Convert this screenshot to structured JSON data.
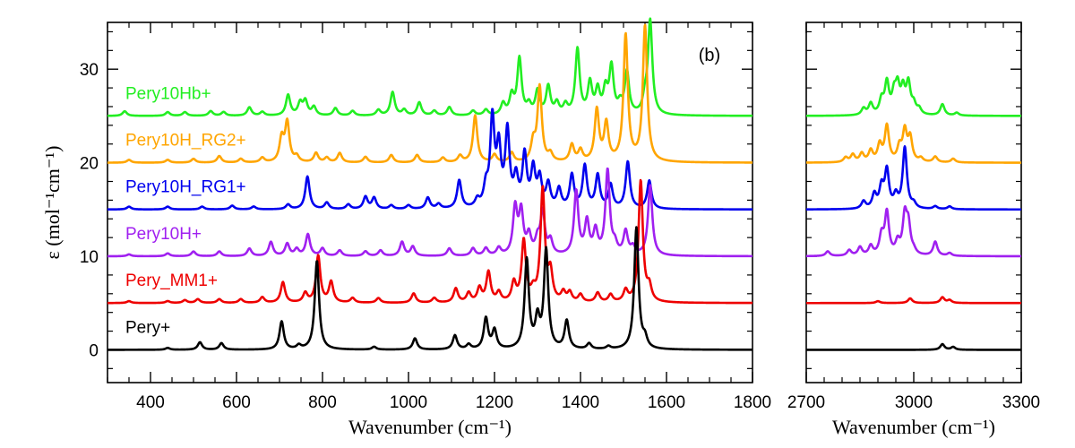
{
  "chart_data": {
    "type": "line",
    "panel_label": "(b)",
    "ylabel": "ε (mol⁻¹cm⁻¹)",
    "panels": [
      {
        "xlabel": "Wavenumber (cm⁻¹)",
        "xlim": [
          300,
          1800
        ],
        "xticks": [
          "400",
          "600",
          "800",
          "1000",
          "1200",
          "1400",
          "1600",
          "1800"
        ],
        "xtick_values": [
          400,
          600,
          800,
          1000,
          1200,
          1400,
          1600,
          1800
        ]
      },
      {
        "xlabel": "Wavenumber (cm⁻¹)",
        "xlim": [
          2700,
          3300
        ],
        "xticks": [
          "2700",
          "3000",
          "3300"
        ],
        "xtick_values": [
          2700,
          3000,
          3300
        ]
      }
    ],
    "ylim": [
      -3.5,
      35
    ],
    "yticks": [
      "0",
      "10",
      "20",
      "30"
    ],
    "ytick_values": [
      0,
      10,
      20,
      30
    ],
    "series": [
      {
        "name": "Pery10Hb+",
        "color": "#22ee22",
        "offset": 25,
        "peaks": [
          [
            340,
            0.5
          ],
          [
            440,
            0.4
          ],
          [
            480,
            0.4
          ],
          [
            540,
            0.5
          ],
          [
            570,
            0.4
          ],
          [
            630,
            0.9
          ],
          [
            660,
            0.4
          ],
          [
            720,
            2.2
          ],
          [
            748,
            1.3
          ],
          [
            760,
            1.5
          ],
          [
            780,
            0.9
          ],
          [
            830,
            0.8
          ],
          [
            870,
            0.5
          ],
          [
            930,
            0.6
          ],
          [
            963,
            2.5
          ],
          [
            990,
            0.6
          ],
          [
            1025,
            1.4
          ],
          [
            1060,
            0.5
          ],
          [
            1095,
            0.9
          ],
          [
            1150,
            0.5
          ],
          [
            1180,
            0.6
          ],
          [
            1220,
            1.2
          ],
          [
            1240,
            2.0
          ],
          [
            1258,
            6.0
          ],
          [
            1280,
            1.0
          ],
          [
            1300,
            2.5
          ],
          [
            1325,
            3.0
          ],
          [
            1345,
            1.2
          ],
          [
            1365,
            1.0
          ],
          [
            1393,
            7.0
          ],
          [
            1422,
            3.3
          ],
          [
            1440,
            2.5
          ],
          [
            1458,
            2.5
          ],
          [
            1472,
            5.0
          ],
          [
            1492,
            1.0
          ],
          [
            1508,
            4.5
          ],
          [
            1550,
            1.5
          ],
          [
            1562,
            10.0
          ],
          [
            2860,
            0.7
          ],
          [
            2880,
            1.2
          ],
          [
            2910,
            1.5
          ],
          [
            2925,
            3.3
          ],
          [
            2945,
            2.0
          ],
          [
            2955,
            2.7
          ],
          [
            2970,
            2.5
          ],
          [
            2985,
            3.2
          ],
          [
            3000,
            1.0
          ],
          [
            3015,
            0.6
          ],
          [
            3080,
            1.2
          ],
          [
            3120,
            0.3
          ]
        ]
      },
      {
        "name": "Pery10H_RG2+",
        "color": "#ffa500",
        "offset": 20,
        "peaks": [
          [
            350,
            0.3
          ],
          [
            440,
            0.3
          ],
          [
            500,
            0.4
          ],
          [
            560,
            0.7
          ],
          [
            610,
            0.4
          ],
          [
            660,
            0.5
          ],
          [
            705,
            2.5
          ],
          [
            718,
            4.2
          ],
          [
            740,
            0.6
          ],
          [
            785,
            1.0
          ],
          [
            810,
            0.5
          ],
          [
            840,
            1.0
          ],
          [
            900,
            0.6
          ],
          [
            960,
            0.8
          ],
          [
            1020,
            0.8
          ],
          [
            1080,
            0.5
          ],
          [
            1120,
            0.7
          ],
          [
            1155,
            5.0
          ],
          [
            1200,
            0.8
          ],
          [
            1240,
            1.0
          ],
          [
            1290,
            2.0
          ],
          [
            1305,
            8.0
          ],
          [
            1330,
            0.8
          ],
          [
            1380,
            1.8
          ],
          [
            1400,
            1.2
          ],
          [
            1438,
            5.5
          ],
          [
            1460,
            4.0
          ],
          [
            1505,
            13.5
          ],
          [
            1550,
            14.5
          ],
          [
            2810,
            0.5
          ],
          [
            2830,
            0.8
          ],
          [
            2855,
            0.9
          ],
          [
            2880,
            1.2
          ],
          [
            2905,
            1.8
          ],
          [
            2925,
            3.8
          ],
          [
            2960,
            1.5
          ],
          [
            2975,
            3.2
          ],
          [
            2990,
            2.5
          ],
          [
            3020,
            0.4
          ],
          [
            3060,
            0.6
          ],
          [
            3110,
            0.4
          ]
        ]
      },
      {
        "name": "Pery10H_RG1+",
        "color": "#0000ee",
        "offset": 15,
        "peaks": [
          [
            350,
            0.3
          ],
          [
            440,
            0.3
          ],
          [
            520,
            0.3
          ],
          [
            590,
            0.4
          ],
          [
            640,
            0.3
          ],
          [
            720,
            0.5
          ],
          [
            765,
            3.5
          ],
          [
            810,
            0.7
          ],
          [
            860,
            0.5
          ],
          [
            900,
            1.3
          ],
          [
            920,
            1.2
          ],
          [
            960,
            0.4
          ],
          [
            1000,
            0.4
          ],
          [
            1045,
            1.2
          ],
          [
            1070,
            0.5
          ],
          [
            1118,
            3.0
          ],
          [
            1160,
            0.8
          ],
          [
            1180,
            2.0
          ],
          [
            1195,
            9.3
          ],
          [
            1210,
            6.0
          ],
          [
            1230,
            8.0
          ],
          [
            1250,
            3.0
          ],
          [
            1270,
            5.5
          ],
          [
            1290,
            4.0
          ],
          [
            1305,
            3.0
          ],
          [
            1325,
            2.5
          ],
          [
            1350,
            2.0
          ],
          [
            1380,
            3.5
          ],
          [
            1410,
            4.5
          ],
          [
            1440,
            3.5
          ],
          [
            1470,
            2.5
          ],
          [
            1510,
            5.0
          ],
          [
            1560,
            3.0
          ],
          [
            2860,
            0.8
          ],
          [
            2890,
            1.5
          ],
          [
            2910,
            2.2
          ],
          [
            2925,
            4.0
          ],
          [
            2950,
            1.3
          ],
          [
            2975,
            6.5
          ],
          [
            3000,
            0.5
          ],
          [
            3060,
            0.3
          ],
          [
            3100,
            0.3
          ]
        ]
      },
      {
        "name": "Pery10H+",
        "color": "#a020f0",
        "offset": 10,
        "peaks": [
          [
            350,
            0.2
          ],
          [
            440,
            0.3
          ],
          [
            500,
            0.5
          ],
          [
            560,
            0.5
          ],
          [
            630,
            0.8
          ],
          [
            680,
            1.5
          ],
          [
            718,
            1.3
          ],
          [
            740,
            0.7
          ],
          [
            766,
            2.3
          ],
          [
            800,
            0.8
          ],
          [
            840,
            0.6
          ],
          [
            900,
            0.5
          ],
          [
            935,
            0.6
          ],
          [
            985,
            1.5
          ],
          [
            1010,
            1.0
          ],
          [
            1095,
            0.8
          ],
          [
            1150,
            0.8
          ],
          [
            1180,
            0.8
          ],
          [
            1210,
            0.8
          ],
          [
            1248,
            5.0
          ],
          [
            1262,
            4.5
          ],
          [
            1280,
            2.0
          ],
          [
            1300,
            1.5
          ],
          [
            1312,
            4.5
          ],
          [
            1330,
            1.5
          ],
          [
            1390,
            6.8
          ],
          [
            1415,
            3.5
          ],
          [
            1435,
            2.5
          ],
          [
            1463,
            9.0
          ],
          [
            1480,
            1.0
          ],
          [
            1505,
            2.5
          ],
          [
            1522,
            0.8
          ],
          [
            1562,
            7.5
          ],
          [
            2760,
            0.5
          ],
          [
            2820,
            0.6
          ],
          [
            2850,
            0.9
          ],
          [
            2880,
            1.0
          ],
          [
            2910,
            2.0
          ],
          [
            2925,
            4.5
          ],
          [
            2955,
            1.3
          ],
          [
            2975,
            4.0
          ],
          [
            2985,
            3.0
          ],
          [
            3000,
            0.4
          ],
          [
            3060,
            1.5
          ],
          [
            3100,
            0.3
          ]
        ]
      },
      {
        "name": "Pery_MM1+",
        "color": "#ee0000",
        "offset": 5,
        "peaks": [
          [
            350,
            0.2
          ],
          [
            440,
            0.2
          ],
          [
            480,
            0.3
          ],
          [
            510,
            0.4
          ],
          [
            560,
            0.4
          ],
          [
            610,
            0.4
          ],
          [
            660,
            0.6
          ],
          [
            708,
            2.2
          ],
          [
            760,
            1.0
          ],
          [
            790,
            5.0
          ],
          [
            820,
            2.2
          ],
          [
            870,
            0.5
          ],
          [
            930,
            0.5
          ],
          [
            1012,
            1.0
          ],
          [
            1060,
            0.5
          ],
          [
            1110,
            1.5
          ],
          [
            1140,
            1.0
          ],
          [
            1165,
            1.5
          ],
          [
            1186,
            3.2
          ],
          [
            1210,
            1.0
          ],
          [
            1245,
            2.0
          ],
          [
            1268,
            6.5
          ],
          [
            1290,
            1.0
          ],
          [
            1312,
            12.0
          ],
          [
            1330,
            3.0
          ],
          [
            1360,
            1.0
          ],
          [
            1375,
            1.0
          ],
          [
            1400,
            0.8
          ],
          [
            1440,
            1.0
          ],
          [
            1470,
            0.8
          ],
          [
            1505,
            1.2
          ],
          [
            1540,
            13.0
          ],
          [
            1560,
            1.5
          ],
          [
            2900,
            0.2
          ],
          [
            2990,
            0.5
          ],
          [
            3080,
            0.6
          ],
          [
            3100,
            0.3
          ]
        ]
      },
      {
        "name": "Pery+",
        "color": "#000000",
        "offset": 0,
        "peaks": [
          [
            440,
            0.2
          ],
          [
            515,
            0.8
          ],
          [
            565,
            0.7
          ],
          [
            705,
            3.0
          ],
          [
            745,
            0.4
          ],
          [
            787,
            9.5
          ],
          [
            920,
            0.3
          ],
          [
            1015,
            1.2
          ],
          [
            1108,
            1.5
          ],
          [
            1140,
            0.5
          ],
          [
            1180,
            3.3
          ],
          [
            1200,
            2.0
          ],
          [
            1275,
            9.5
          ],
          [
            1300,
            3.0
          ],
          [
            1320,
            10.5
          ],
          [
            1368,
            3.0
          ],
          [
            1420,
            0.6
          ],
          [
            1465,
            0.3
          ],
          [
            1530,
            13.0
          ],
          [
            1550,
            1.0
          ],
          [
            3080,
            0.6
          ],
          [
            3110,
            0.3
          ]
        ]
      }
    ]
  }
}
